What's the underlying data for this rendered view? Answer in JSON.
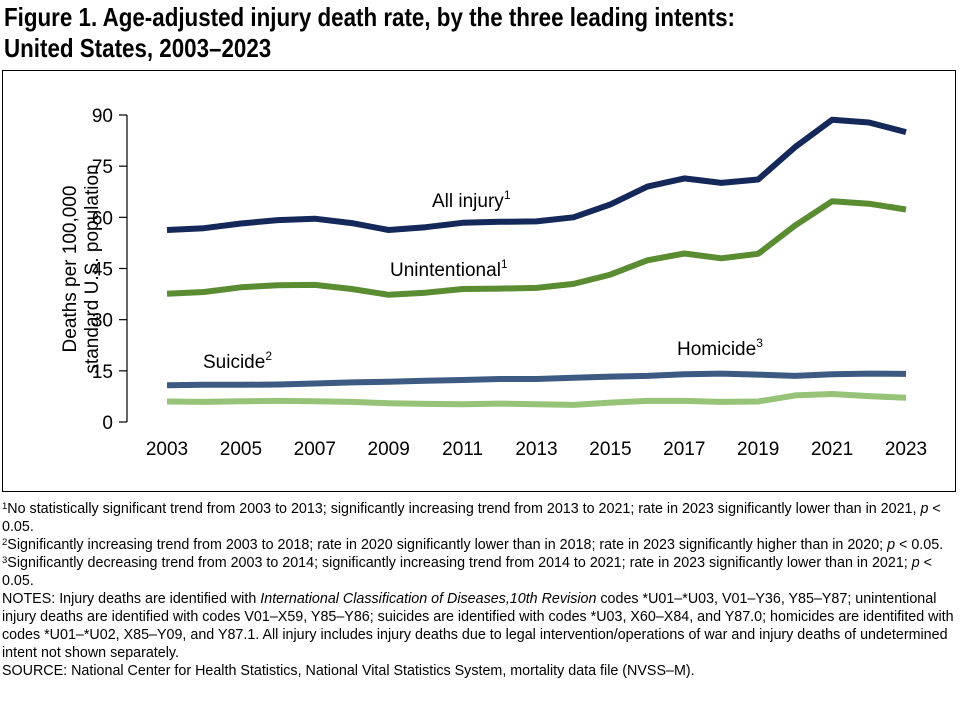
{
  "title": {
    "line1": "Figure 1. Age-adjusted injury death rate, by the three leading intents:",
    "line2": "United States, 2003–2023"
  },
  "chart_data": {
    "type": "line",
    "ylabel_line1": "Deaths per 100,000",
    "ylabel_line2": "standard U.S. population",
    "xlabel": "",
    "ylim": [
      0,
      90
    ],
    "yticks": [
      0,
      15,
      30,
      45,
      60,
      75,
      90
    ],
    "xticks": [
      2003,
      2005,
      2007,
      2009,
      2011,
      2013,
      2015,
      2017,
      2019,
      2021,
      2023
    ],
    "grid": false,
    "x": [
      2003,
      2004,
      2005,
      2006,
      2007,
      2008,
      2009,
      2010,
      2011,
      2012,
      2013,
      2014,
      2015,
      2016,
      2017,
      2018,
      2019,
      2020,
      2021,
      2022,
      2023
    ],
    "series": [
      {
        "name": "All injury",
        "note": "1",
        "color": "#14285a",
        "values": [
          56.3,
          56.8,
          58.2,
          59.2,
          59.6,
          58.3,
          56.3,
          57.1,
          58.4,
          58.7,
          58.8,
          60.0,
          63.8,
          69.0,
          71.4,
          70.1,
          71.1,
          80.6,
          88.6,
          87.8,
          85.0
        ]
      },
      {
        "name": "Unintentional",
        "note": "1",
        "color": "#5a8c32",
        "values": [
          37.6,
          38.1,
          39.5,
          40.1,
          40.2,
          39.0,
          37.3,
          37.9,
          39.0,
          39.1,
          39.3,
          40.5,
          43.2,
          47.4,
          49.4,
          48.0,
          49.3,
          57.6,
          64.7,
          64.0,
          62.3
        ]
      },
      {
        "name": "Suicide",
        "note": "2",
        "color": "#3c5a82",
        "values": [
          10.8,
          10.9,
          10.9,
          11.0,
          11.3,
          11.6,
          11.8,
          12.1,
          12.3,
          12.6,
          12.6,
          13.0,
          13.3,
          13.5,
          14.0,
          14.2,
          13.9,
          13.5,
          14.0,
          14.2,
          14.1
        ]
      },
      {
        "name": "Homicide",
        "note": "3",
        "color": "#96c378",
        "values": [
          6.0,
          5.9,
          6.1,
          6.2,
          6.1,
          5.9,
          5.5,
          5.3,
          5.2,
          5.4,
          5.2,
          5.0,
          5.7,
          6.2,
          6.2,
          5.9,
          6.0,
          7.8,
          8.2,
          7.6,
          7.1
        ]
      }
    ]
  },
  "footnotes": {
    "n1_sup": "1",
    "n1": "No statistically significant trend from 2003 to 2013; significantly increasing trend from 2013 to 2021; rate in 2023 significantly lower than in 2021, ",
    "n2_sup": "2",
    "n2": "Significantly increasing trend from 2003 to 2018; rate in 2020 significantly lower than in 2018; rate in 2023 significantly higher than in 2020; ",
    "n3_sup": "3",
    "n3": "Significantly decreasing trend from 2003 to 2014; significantly increasing trend from 2014 to 2021; rate in 2023 significantly lower than in 2021; ",
    "p": "p",
    "p_suffix": " < 0.05.",
    "notes_prefix": "NOTES: Injury deaths are identified with ",
    "notes_italic": "International Classification of Diseases,10th Revision",
    "notes_rest": " codes *U01–*U03, V01–Y36, Y85–Y87; unintentional injury deaths are identified with codes V01–X59, Y85–Y86; suicides are identified with codes *U03, X60–X84, and Y87.0; homicides are identifited with codes *U01–*U02, X85–Y09, and Y87.1. All injury includes injury deaths due to legal intervention/operations of war and injury deaths of undetermined intent not shown separately.",
    "source": "SOURCE: National Center for Health Statistics, National Vital Statistics System, mortality data file (NVSS–M)."
  }
}
